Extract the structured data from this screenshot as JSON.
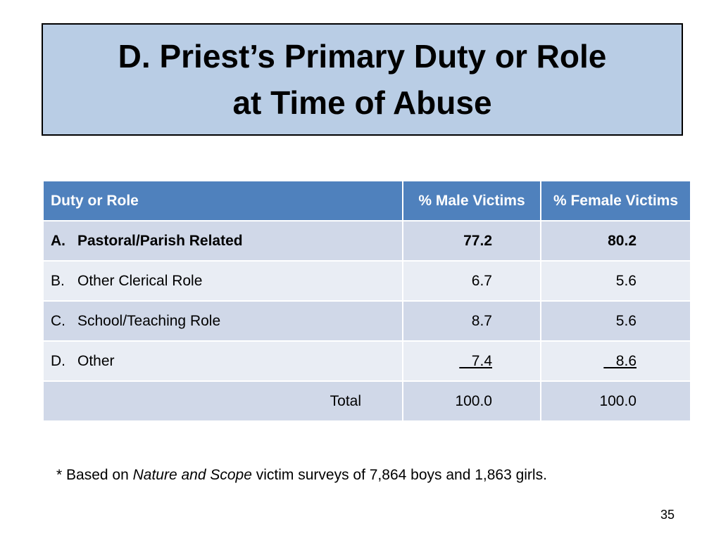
{
  "slide": {
    "title_line1": "D. Priest’s Primary Duty or Role",
    "title_line2": "at Time of Abuse",
    "title_bg_color": "#b9cde5",
    "page_number": "35"
  },
  "table": {
    "header_color": "#4f81bd",
    "row_colors": [
      "#d0d8e8",
      "#e9edf4"
    ],
    "headers": {
      "role": "Duty or Role",
      "male": "% Male Victims",
      "female": "% Female Victims"
    },
    "rows": [
      {
        "letter": "A.",
        "role": "Pastoral/Parish Related",
        "male": "77.2",
        "female": "80.2"
      },
      {
        "letter": "B.",
        "role": "Other Clerical Role",
        "male": "6.7",
        "female": "5.6"
      },
      {
        "letter": "C.",
        "role": "School/Teaching Role",
        "male": "8.7",
        "female": "5.6"
      },
      {
        "letter": "D.",
        "role": "Other",
        "male": "   7.4",
        "female": "   8.6"
      }
    ],
    "total": {
      "label": "Total",
      "male": "100.0",
      "female": "100.0"
    }
  },
  "footnote": {
    "prefix": "* Based on ",
    "italic": "Nature and Scope",
    "suffix": " victim surveys of 7,864 boys and 1,863 girls."
  }
}
